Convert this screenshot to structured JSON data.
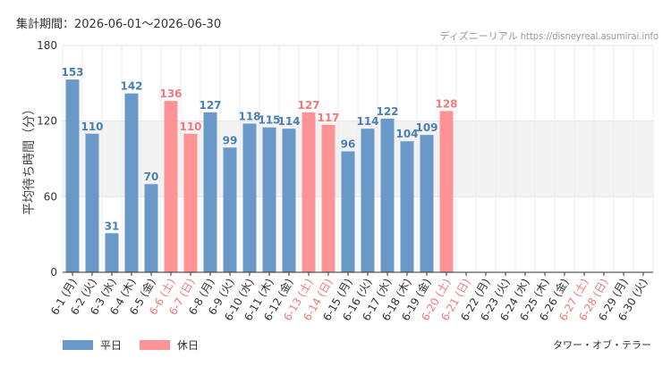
{
  "period_label": "集計期間：2026-06-01〜2026-06-30",
  "credit": "ディズニーリアル https://disneyreal.asumirai.info",
  "attraction_name": "タワー・オブ・テラー",
  "legend": [
    {
      "label": "平日",
      "color": "#6a98c8"
    },
    {
      "label": "休日",
      "color": "#ff9396"
    }
  ],
  "chart_data": {
    "type": "bar",
    "ylabel": "平均待ち時間（分）",
    "ylim": [
      0,
      180
    ],
    "yticks": [
      0,
      60,
      120,
      180
    ],
    "band": [
      60,
      120
    ],
    "grid": true,
    "colors": {
      "weekday": "#6a98c8",
      "holiday": "#ff9396",
      "weekday_label": "#4a7fb5",
      "holiday_label": "#f07a7e"
    },
    "categories": [
      "6-1 (月)",
      "6-2 (火)",
      "6-3 (水)",
      "6-4 (木)",
      "6-5 (金)",
      "6-6 (土)",
      "6-7 (日)",
      "6-8 (月)",
      "6-9 (火)",
      "6-10 (水)",
      "6-11 (木)",
      "6-12 (金)",
      "6-13 (土)",
      "6-14 (日)",
      "6-15 (月)",
      "6-16 (火)",
      "6-17 (水)",
      "6-18 (木)",
      "6-19 (金)",
      "6-20 (土)",
      "6-21 (日)",
      "6-22 (月)",
      "6-23 (火)",
      "6-24 (水)",
      "6-25 (木)",
      "6-26 (金)",
      "6-27 (土)",
      "6-28 (日)",
      "6-29 (月)",
      "6-30 (火)"
    ],
    "values": [
      153,
      110,
      31,
      142,
      70,
      136,
      110,
      127,
      99,
      118,
      115,
      114,
      127,
      117,
      96,
      114,
      122,
      104,
      109,
      128,
      null,
      null,
      null,
      null,
      null,
      null,
      null,
      null,
      null,
      null
    ],
    "holiday": [
      false,
      false,
      false,
      false,
      false,
      true,
      true,
      false,
      false,
      false,
      false,
      false,
      true,
      true,
      false,
      false,
      false,
      false,
      false,
      true,
      true,
      false,
      false,
      false,
      false,
      false,
      true,
      true,
      false,
      false
    ]
  }
}
